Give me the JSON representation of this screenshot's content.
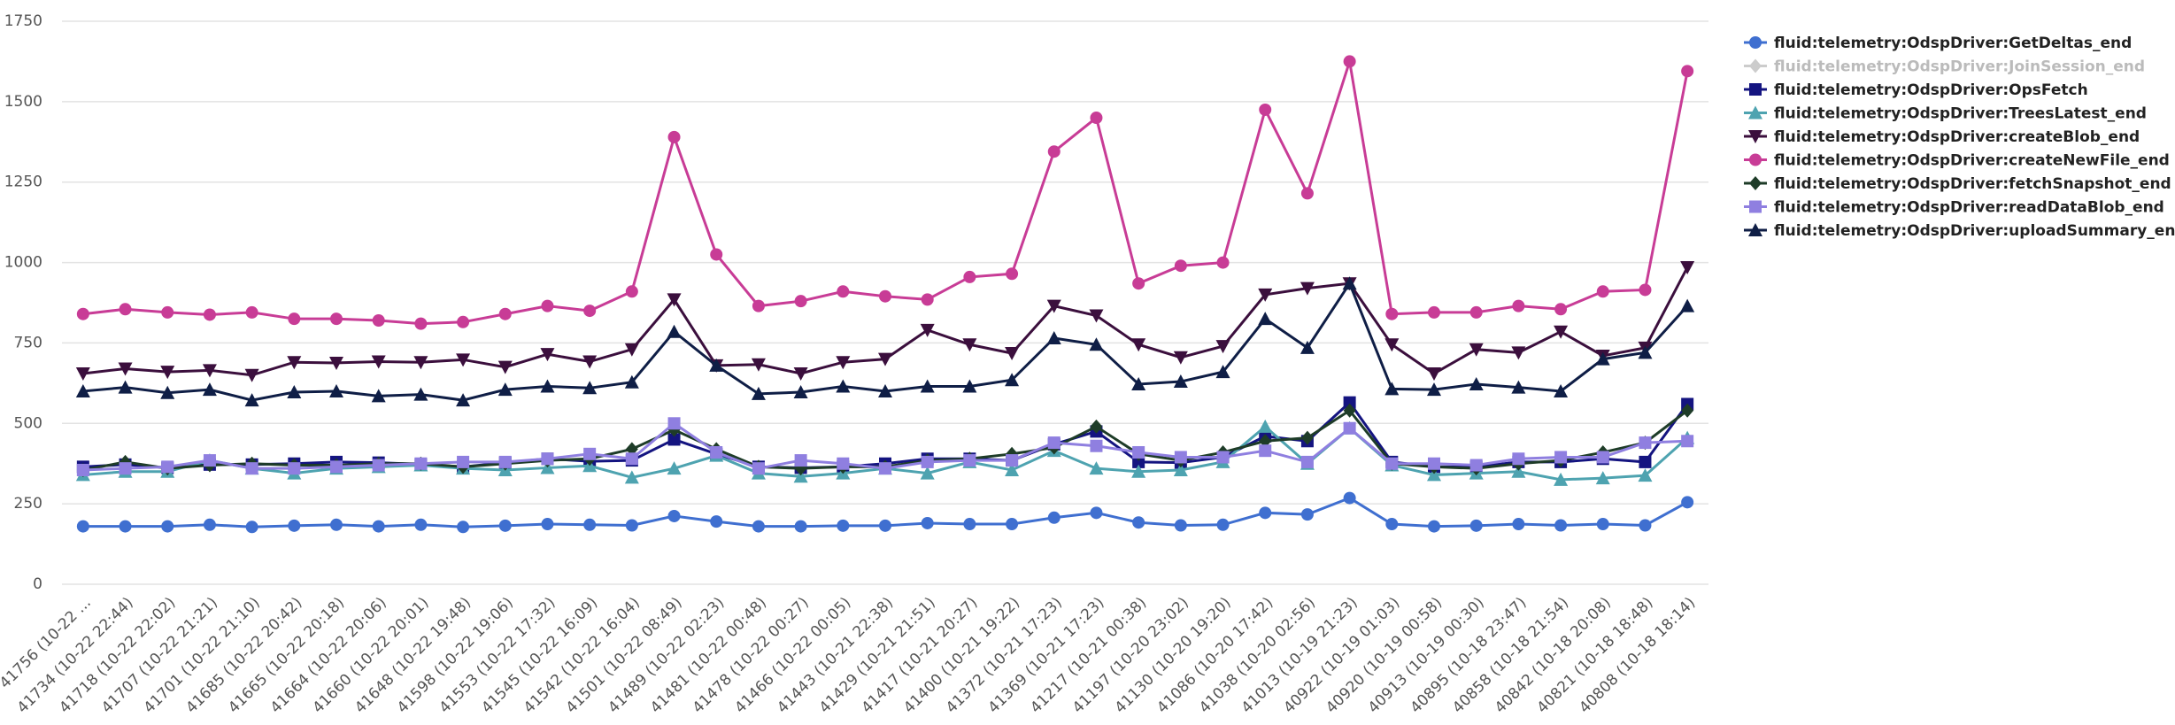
{
  "chart_data": {
    "type": "line",
    "categories": [
      "41756 (10-22 ...",
      "41734 (10-22 22:44)",
      "41718 (10-22 22:02)",
      "41707 (10-22 21:21)",
      "41701 (10-22 21:10)",
      "41685 (10-22 20:42)",
      "41665 (10-22 20:18)",
      "41664 (10-22 20:06)",
      "41660 (10-22 20:01)",
      "41648 (10-22 19:48)",
      "41598 (10-22 19:06)",
      "41553 (10-22 17:32)",
      "41545 (10-22 16:09)",
      "41542 (10-22 16:04)",
      "41501 (10-22 08:49)",
      "41489 (10-22 02:23)",
      "41481 (10-22 00:48)",
      "41478 (10-22 00:27)",
      "41466 (10-22 00:05)",
      "41443 (10-21 22:38)",
      "41429 (10-21 21:51)",
      "41417 (10-21 20:27)",
      "41400 (10-21 19:22)",
      "41372 (10-21 17:23)",
      "41369 (10-21 17:23)",
      "41217 (10-21 00:38)",
      "41197 (10-20 23:02)",
      "41130 (10-20 19:20)",
      "41086 (10-20 17:42)",
      "41038 (10-20 02:56)",
      "41013 (10-19 21:23)",
      "40922 (10-19 01:03)",
      "40920 (10-19 00:58)",
      "40913 (10-19 00:30)",
      "40895 (10-18 23:47)",
      "40858 (10-18 21:54)",
      "40842 (10-18 20:08)",
      "40821 (10-18 18:48)",
      "40808 (10-18 18:14)"
    ],
    "series": [
      {
        "name": "fluid:telemetry:OdspDriver:GetDeltas_end",
        "color": "#3f6fd0",
        "marker": "circle",
        "values": [
          180,
          180,
          180,
          185,
          178,
          182,
          185,
          180,
          185,
          178,
          182,
          187,
          185,
          183,
          212,
          195,
          180,
          180,
          182,
          182,
          190,
          187,
          187,
          207,
          222,
          192,
          183,
          185,
          222,
          217,
          268,
          187,
          180,
          182,
          187,
          183,
          187,
          183,
          255
        ]
      },
      {
        "name": "fluid:telemetry:OdspDriver:JoinSession_end",
        "color": "#c8c8c8",
        "marker": "diamond",
        "hidden": true
      },
      {
        "name": "fluid:telemetry:OdspDriver:OpsFetch",
        "color": "#141480",
        "marker": "square",
        "values": [
          365,
          372,
          362,
          372,
          372,
          375,
          380,
          378,
          373,
          365,
          378,
          390,
          382,
          385,
          450,
          405,
          365,
          362,
          365,
          375,
          390,
          390,
          385,
          435,
          475,
          380,
          378,
          395,
          460,
          445,
          565,
          380,
          365,
          365,
          380,
          380,
          390,
          380,
          560
        ]
      },
      {
        "name": "fluid:telemetry:OdspDriver:TreesLatest_end",
        "color": "#4ea3b0",
        "marker": "triangle",
        "values": [
          340,
          350,
          350,
          385,
          360,
          345,
          360,
          365,
          370,
          360,
          355,
          362,
          368,
          332,
          360,
          400,
          345,
          335,
          345,
          360,
          345,
          380,
          355,
          415,
          360,
          350,
          355,
          380,
          490,
          375,
          485,
          370,
          340,
          345,
          350,
          325,
          330,
          338,
          455
        ]
      },
      {
        "name": "fluid:telemetry:OdspDriver:createBlob_end",
        "color": "#3b0f3d",
        "marker": "triangle-down",
        "values": [
          655,
          670,
          660,
          665,
          650,
          690,
          688,
          692,
          690,
          698,
          675,
          715,
          692,
          730,
          885,
          680,
          683,
          655,
          690,
          700,
          790,
          745,
          718,
          865,
          835,
          745,
          705,
          740,
          900,
          920,
          935,
          745,
          655,
          730,
          720,
          785,
          710,
          735,
          985
        ]
      },
      {
        "name": "fluid:telemetry:OdspDriver:createNewFile_end",
        "color": "#c83c96",
        "marker": "circle",
        "values": [
          840,
          855,
          845,
          838,
          845,
          825,
          825,
          820,
          810,
          815,
          840,
          865,
          850,
          910,
          1390,
          1025,
          865,
          880,
          910,
          895,
          885,
          955,
          965,
          1345,
          1450,
          935,
          990,
          1000,
          1475,
          1215,
          1625,
          840,
          845,
          845,
          865,
          855,
          910,
          915,
          1595
        ]
      },
      {
        "name": "fluid:telemetry:OdspDriver:fetchSnapshot_end",
        "color": "#1e3c28",
        "marker": "diamond",
        "values": [
          355,
          380,
          360,
          370,
          375,
          370,
          370,
          375,
          375,
          365,
          375,
          385,
          390,
          420,
          480,
          420,
          365,
          360,
          365,
          365,
          385,
          390,
          405,
          425,
          490,
          405,
          385,
          410,
          445,
          455,
          540,
          375,
          365,
          360,
          375,
          385,
          410,
          440,
          540
        ]
      },
      {
        "name": "fluid:telemetry:OdspDriver:readDataBlob_end",
        "color": "#8f7fe0",
        "marker": "square",
        "values": [
          355,
          360,
          365,
          385,
          360,
          360,
          365,
          370,
          375,
          380,
          380,
          390,
          405,
          390,
          500,
          410,
          360,
          385,
          375,
          360,
          380,
          385,
          385,
          440,
          430,
          410,
          395,
          395,
          415,
          380,
          485,
          375,
          375,
          370,
          390,
          395,
          395,
          440,
          445
        ]
      },
      {
        "name": "fluid:telemetry:OdspDriver:uploadSummary_end",
        "color": "#0f1e46",
        "marker": "triangle",
        "values": [
          600,
          612,
          595,
          605,
          572,
          597,
          600,
          585,
          590,
          572,
          605,
          615,
          610,
          628,
          785,
          680,
          592,
          597,
          615,
          600,
          615,
          615,
          635,
          765,
          745,
          622,
          630,
          660,
          825,
          735,
          935,
          607,
          605,
          622,
          612,
          600,
          700,
          720,
          865
        ]
      }
    ],
    "ylim": [
      0,
      1750
    ],
    "yticks": [
      0,
      250,
      500,
      750,
      1000,
      1250,
      1500,
      1750
    ],
    "grid": true,
    "legend": "right"
  }
}
